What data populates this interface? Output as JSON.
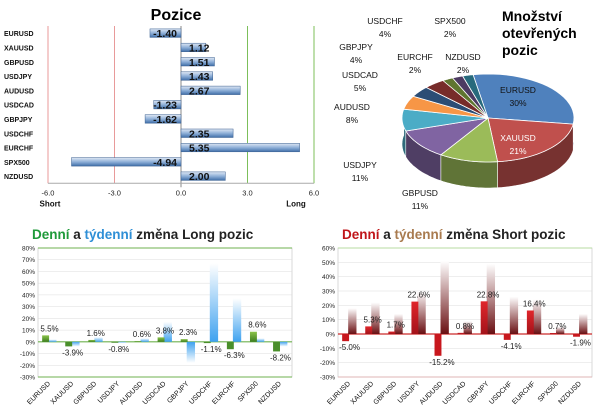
{
  "colors": {
    "bar_blue": "#4f81bd",
    "long_green": "#70ad47",
    "long_blue": "#4fa3e0",
    "short_red": "#c0161a",
    "short_dark": "#6b1416",
    "neg_red": "#b3202a",
    "grid_red": "#e89a9a",
    "grid_green": "#7cbf5a",
    "title_green": "#1f9a3a",
    "title_blue": "#2f8fd6",
    "title_red": "#c0161a",
    "title_tan": "#a97b4f"
  },
  "chart_data": [
    {
      "type": "bar",
      "orientation": "horizontal",
      "title": "Pozice",
      "categories": [
        "EURUSD",
        "XAUUSD",
        "GBPUSD",
        "USDJPY",
        "AUDUSD",
        "USDCAD",
        "GBPJPY",
        "USDCHF",
        "EURCHF",
        "SPX500",
        "NZDUSD"
      ],
      "values": [
        -1.4,
        1.12,
        1.51,
        1.43,
        2.67,
        -1.23,
        -1.62,
        2.35,
        5.35,
        -4.94,
        2.0
      ],
      "value_labels": [
        "-1.40",
        "1.12",
        "1.51",
        "1.43",
        "2.67",
        "-1.23",
        "-1.62",
        "2.35",
        "5.35",
        "-4.94",
        "2.00"
      ],
      "xlim": [
        -6,
        6
      ],
      "xticks": [
        "-6.0",
        "-3.0",
        "0.0",
        "3.0",
        "6.0"
      ],
      "xtick_values": [
        -6,
        -3,
        0,
        3,
        6
      ],
      "left_label": "Short",
      "right_label": "Long"
    },
    {
      "type": "pie",
      "title_lines": [
        "Množství",
        "otevřených",
        "pozic"
      ],
      "slices": [
        {
          "name": "EURUSD",
          "value": 30,
          "label": "30%",
          "color": "#4f81bd"
        },
        {
          "name": "XAUUSD",
          "value": 21,
          "label": "21%",
          "color": "#c0504d"
        },
        {
          "name": "GBPUSD",
          "value": 11,
          "label": "11%",
          "color": "#9bbb59"
        },
        {
          "name": "USDJPY",
          "value": 11,
          "label": "11%",
          "color": "#8064a2"
        },
        {
          "name": "AUDUSD",
          "value": 8,
          "label": "8%",
          "color": "#4bacc6"
        },
        {
          "name": "USDCAD",
          "value": 5,
          "label": "5%",
          "color": "#f79646"
        },
        {
          "name": "GBPJPY",
          "value": 4,
          "label": "4%",
          "color": "#2c4d75"
        },
        {
          "name": "USDCHF",
          "value": 4,
          "label": "4%",
          "color": "#772c2a"
        },
        {
          "name": "EURCHF",
          "value": 2,
          "label": "2%",
          "color": "#5f7530"
        },
        {
          "name": "SPX500",
          "value": 2,
          "label": "2%",
          "color": "#4d3b62"
        },
        {
          "name": "NZDUSD",
          "value": 2,
          "label": "2%",
          "color": "#276a7c"
        }
      ]
    },
    {
      "type": "bar",
      "title_parts": [
        "Denní",
        " a ",
        "týdenní",
        " změna Long pozic"
      ],
      "categories": [
        "EURUSD",
        "XAUUSD",
        "GBPUSD",
        "USDJPY",
        "AUDUSD",
        "USDCAD",
        "GBPJPY",
        "USDCHF",
        "EURCHF",
        "SPX500",
        "NZDUSD"
      ],
      "series": [
        {
          "name": "Denní",
          "values": [
            5.5,
            -3.9,
            1.6,
            -0.8,
            0.6,
            3.8,
            2.3,
            -1.1,
            -6.3,
            8.6,
            -8.2
          ]
        },
        {
          "name": "týdenní",
          "values": [
            2.0,
            -4.0,
            4.0,
            -1.0,
            3.0,
            17.0,
            -18.0,
            67.0,
            37.0,
            3.0,
            -4.0
          ]
        }
      ],
      "data_labels": [
        "5.5%",
        "-3.9%",
        "1.6%",
        "-0.8%",
        "0.6%",
        "3.8%",
        "2.3%",
        "-1.1%",
        "-6.3%",
        "8.6%",
        "-8.2%"
      ],
      "ylim": [
        -30,
        80
      ],
      "yticks": [
        "80%",
        "70%",
        "60%",
        "50%",
        "40%",
        "30%",
        "20%",
        "10%",
        "0%",
        "-10%",
        "-20%",
        "-30%"
      ],
      "ytick_values": [
        80,
        70,
        60,
        50,
        40,
        30,
        20,
        10,
        0,
        -10,
        -20,
        -30
      ]
    },
    {
      "type": "bar",
      "title_parts": [
        "Denní",
        " a ",
        "týdenní",
        " změna Short pozic"
      ],
      "categories": [
        "EURUSD",
        "XAUUSD",
        "GBPUSD",
        "USDJPY",
        "AUDUSD",
        "USDCAD",
        "GBPJPY",
        "USDCHF",
        "EURCHF",
        "SPX500",
        "NZDUSD"
      ],
      "series": [
        {
          "name": "Denní",
          "values": [
            -5.0,
            5.3,
            1.7,
            22.6,
            -15.2,
            0.8,
            22.8,
            -4.1,
            16.4,
            0.7,
            -1.9
          ]
        },
        {
          "name": "týdenní",
          "values": [
            18.0,
            22.0,
            14.0,
            30.0,
            51.0,
            9.0,
            49.0,
            26.0,
            24.0,
            5.0,
            14.0
          ]
        }
      ],
      "data_labels": [
        "-5.0%",
        "5.3%",
        "1.7%",
        "22.6%",
        "-15.2%",
        "0.8%",
        "22.8%",
        "-4.1%",
        "16.4%",
        "0.7%",
        "-1.9%"
      ],
      "ylim": [
        -30,
        60
      ],
      "yticks": [
        "60%",
        "50%",
        "40%",
        "30%",
        "20%",
        "10%",
        "0%",
        "-10%",
        "-20%",
        "-30%"
      ],
      "ytick_values": [
        60,
        50,
        40,
        30,
        20,
        10,
        0,
        -10,
        -20,
        -30
      ]
    }
  ]
}
